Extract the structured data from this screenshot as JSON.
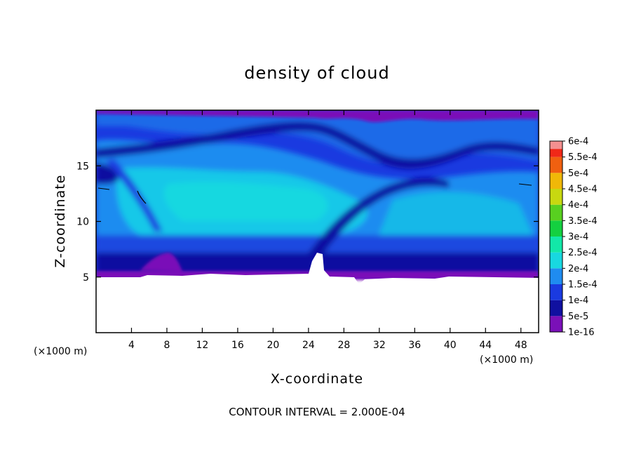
{
  "chart_data": {
    "type": "heatmap",
    "title": "density of cloud",
    "xlabel": "X-coordinate",
    "ylabel": "Z-coordinate",
    "x_unit_label": "(×1000 m)",
    "x_unit_label_right": "(×1000 m)",
    "xlim": [
      0,
      50
    ],
    "ylim": [
      0,
      20
    ],
    "x_ticks": [
      4,
      8,
      12,
      16,
      20,
      24,
      28,
      32,
      36,
      40,
      44,
      48
    ],
    "y_ticks": [
      5,
      10,
      15
    ],
    "footnote": "CONTOUR INTERVAL = 2.000E-04",
    "colorbar": {
      "levels": [
        "1e-16",
        "5e-5",
        "1e-4",
        "1.5e-4",
        "2e-4",
        "2.5e-4",
        "3e-4",
        "3.5e-4",
        "4e-4",
        "4.5e-4",
        "5e-4",
        "5.5e-4",
        "6e-4"
      ],
      "colors": [
        "#7a10b8",
        "#1010a0",
        "#1a3ae0",
        "#1f8cf0",
        "#18d8e0",
        "#12e8a8",
        "#14d040",
        "#58d020",
        "#c8d810",
        "#f0b808",
        "#f06010",
        "#f02818",
        "#f49090"
      ]
    },
    "field_description_regions": {
      "no_data_below_z": 5,
      "dominant_range": [
        "5e-5",
        "2e-4"
      ]
    }
  }
}
